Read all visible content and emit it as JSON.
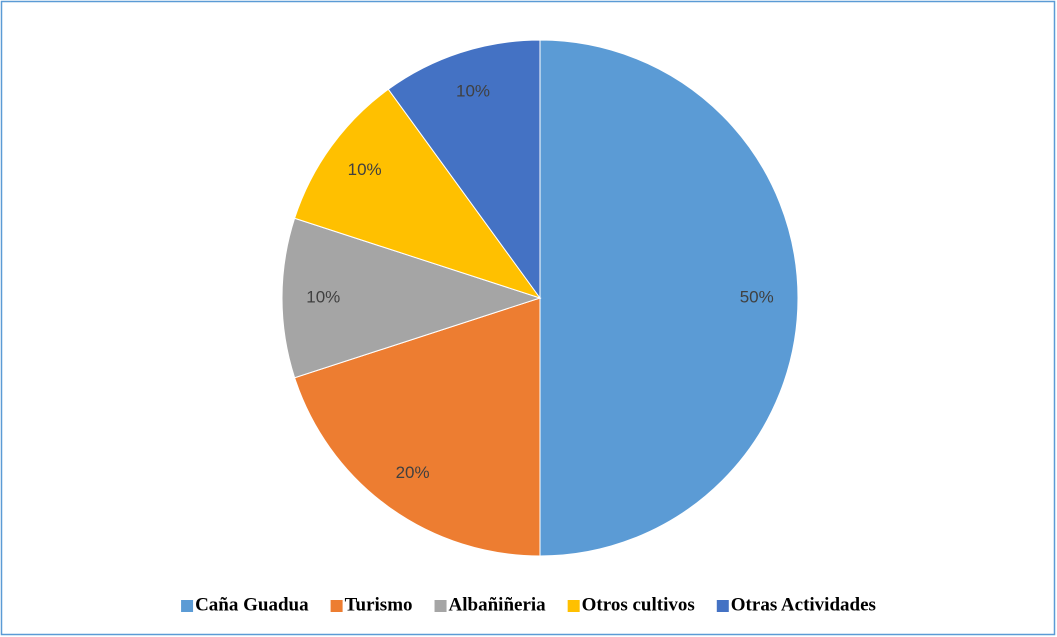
{
  "chart_data": {
    "type": "pie",
    "categories": [
      "Caña Guadua",
      "Turismo",
      "Albañiñeria",
      "Otros cultivos",
      "Otras Actividades"
    ],
    "values": [
      50,
      20,
      10,
      10,
      10
    ],
    "value_labels": [
      "50%",
      "20%",
      "10%",
      "10%",
      "10%"
    ],
    "colors": [
      "#5b9bd5",
      "#ed7d31",
      "#a5a5a5",
      "#ffc000",
      "#4472c4"
    ],
    "legend": "bottom"
  }
}
